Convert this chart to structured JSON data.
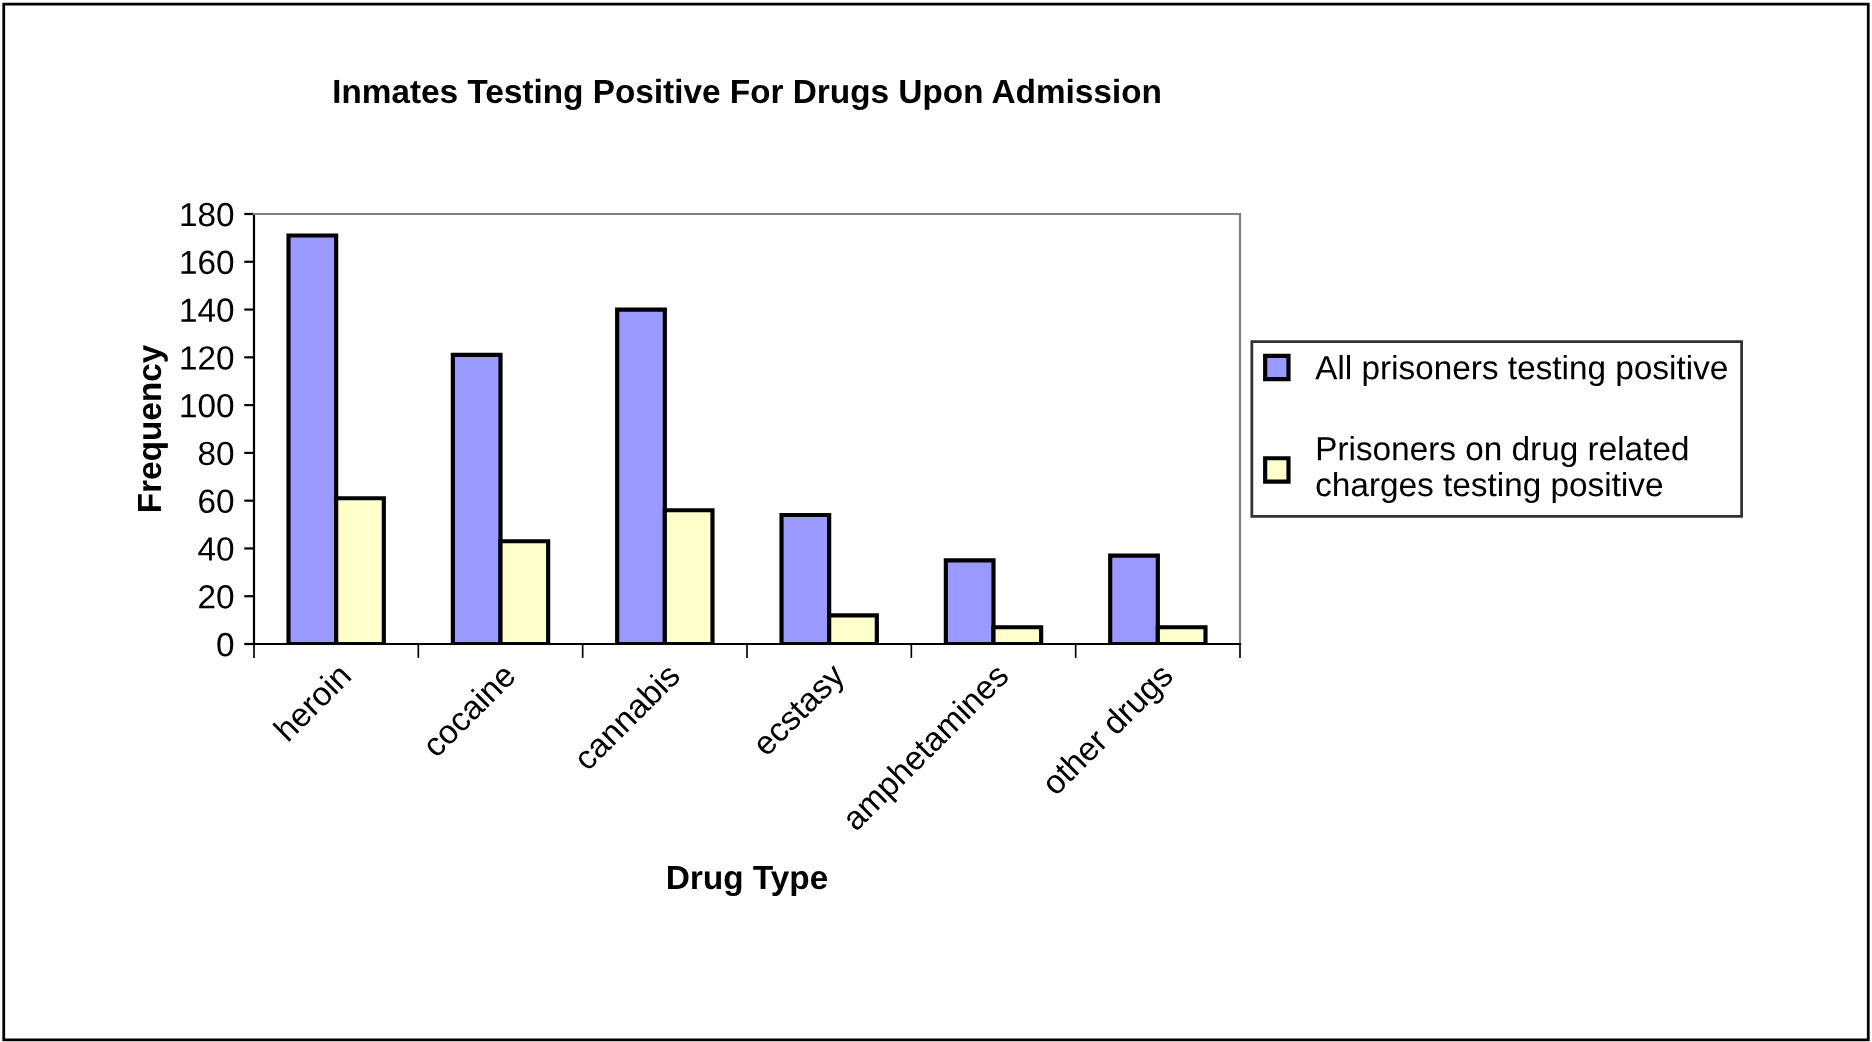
{
  "chart_data": {
    "type": "bar",
    "title": "Inmates Testing Positive For Drugs Upon Admission",
    "xlabel": "Drug Type",
    "ylabel": "Frequency",
    "categories": [
      "heroin",
      "cocaine",
      "cannabis",
      "ecstasy",
      "amphetamines",
      "other drugs"
    ],
    "series": [
      {
        "name": "All prisoners testing positive",
        "color": "#9999ff",
        "values": [
          171,
          121,
          140,
          54,
          35,
          37
        ]
      },
      {
        "name": "Prisoners on drug related\ncharges testing positive",
        "color": "#ffffcc",
        "values": [
          61,
          43,
          56,
          12,
          7,
          7
        ]
      }
    ],
    "ylim": [
      0,
      180
    ],
    "yticks": [
      0,
      20,
      40,
      60,
      80,
      100,
      120,
      140,
      160,
      180
    ],
    "grid": false,
    "legend": "right"
  }
}
